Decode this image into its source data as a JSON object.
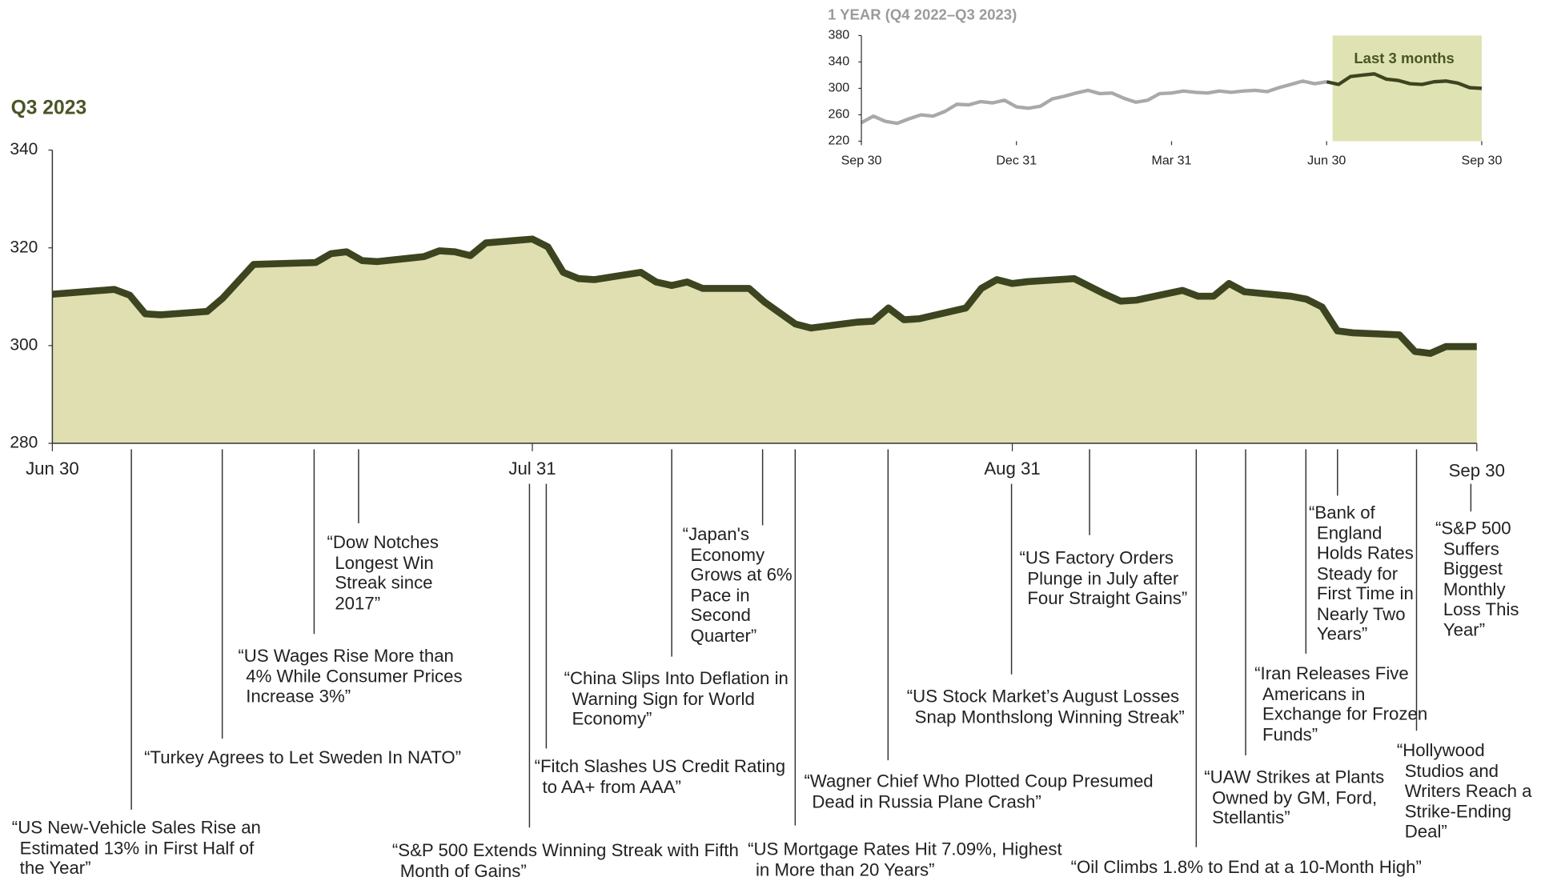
{
  "chart_data": [
    {
      "type": "area",
      "title": "Q3 2023",
      "x": [
        "Jun 30",
        "Jul 4",
        "Jul 5",
        "Jul 6",
        "Jul 7",
        "Jul 10",
        "Jul 11",
        "Jul 13",
        "Jul 17",
        "Jul 18",
        "Jul 19",
        "Jul 20",
        "Jul 21",
        "Jul 24",
        "Jul 25",
        "Jul 26",
        "Jul 27",
        "Jul 28",
        "Jul 31",
        "Aug 1",
        "Aug 2",
        "Aug 3",
        "Aug 4",
        "Aug 7",
        "Aug 8",
        "Aug 9",
        "Aug 10",
        "Aug 11",
        "Aug 14",
        "Aug 15",
        "Aug 17",
        "Aug 18",
        "Aug 21",
        "Aug 22",
        "Aug 23",
        "Aug 24",
        "Aug 25",
        "Aug 28",
        "Aug 29",
        "Aug 30",
        "Aug 31",
        "Sep 1",
        "Sep 4",
        "Sep 6",
        "Sep 7",
        "Sep 8",
        "Sep 11",
        "Sep 12",
        "Sep 13",
        "Sep 14",
        "Sep 15",
        "Sep 18",
        "Sep 19",
        "Sep 20",
        "Sep 21",
        "Sep 22",
        "Sep 25",
        "Sep 26",
        "Sep 27",
        "Sep 28",
        "Sep 30"
      ],
      "values": [
        310.5,
        311.5,
        310.3,
        306.5,
        306.3,
        307,
        309.7,
        316.6,
        317,
        318.8,
        319.2,
        317.4,
        317.2,
        318.2,
        319.4,
        319.2,
        318.4,
        321,
        321.8,
        320.2,
        315,
        313.7,
        313.5,
        315,
        313,
        312.3,
        313,
        311.7,
        311.7,
        308.9,
        304.4,
        303.6,
        304.8,
        305,
        307.7,
        305.3,
        305.5,
        307.7,
        311.7,
        313.5,
        312.7,
        313.1,
        313.7,
        310.5,
        309.1,
        309.3,
        311.3,
        310.1,
        310.1,
        312.7,
        311,
        310.1,
        309.5,
        307.9,
        303,
        302.6,
        302.2,
        298.8,
        298.4,
        299.8,
        299.8
      ],
      "xlim": [
        "Jun 30",
        "Sep 30"
      ],
      "xticks": [
        "Jun 30",
        "Jul 31",
        "Aug 31",
        "Sep 30"
      ],
      "ylim": [
        280,
        340
      ],
      "yticks": [
        280,
        300,
        320,
        340
      ],
      "color": "#3c4420",
      "fill": "#dfdfb1",
      "grid": false,
      "annotations": [
        "“US New-Vehicle Sales Rise an Estimated 13% in First Half of the Year”",
        "“Turkey Agrees to Let Sweden In NATO”",
        "“US Wages Rise More than 4% While Consumer Prices Increase 3%”",
        "“Dow Notches Longest Win Streak since 2017”",
        "“S&P 500 Extends Winning Streak with Fifth Month of Gains”",
        "“Fitch Slashes US Credit Rating to AA+ from AAA”",
        "“China Slips Into Deflation in Warning Sign for World Economy”",
        "“Japan's Economy Grows at 6% Pace in Second Quarter”",
        "“US Mortgage Rates Hit 7.09%, Highest in More than 20 Years”",
        "“Wagner Chief Who Plotted Coup Presumed Dead in Russia Plane Crash”",
        "“US Stock Market’s August Losses Snap Monthslong Winning Streak”",
        "“US Factory Orders Plunge in July after Four Straight Gains”",
        "“Oil Climbs 1.8% to End at a 10-Month High”",
        "“UAW Strikes at Plants Owned by GM, Ford, Stellantis”",
        "“Iran Releases Five Americans in Exchange for Frozen Funds”",
        "“Bank of England Holds Rates Steady for First Time in Nearly Two Years”",
        "“Hollywood Studios and Writers Reach a Strike-Ending Deal”",
        "“S&P 500 Suffers Biggest Monthly Loss This Year”"
      ]
    },
    {
      "type": "line",
      "title": "1 YEAR (Q4 2022–Q3 2023)",
      "values": [
        248,
        258,
        250,
        247,
        254,
        260,
        258,
        265,
        276,
        275,
        280,
        278,
        282,
        272,
        270,
        273,
        284,
        288,
        293,
        297,
        292,
        293,
        285,
        279,
        282,
        292,
        293,
        296,
        294,
        293,
        296,
        294,
        296,
        297,
        295,
        301,
        306,
        311,
        307,
        310,
        306,
        318,
        320,
        322,
        314,
        312,
        307,
        306,
        310,
        311,
        308,
        301,
        300
      ],
      "xlim": [
        0,
        52
      ],
      "xticks": [
        {
          "value": 0,
          "label": "Sep 30"
        },
        {
          "value": 13,
          "label": "Dec 31"
        },
        {
          "value": 26,
          "label": "Mar 31"
        },
        {
          "value": 39,
          "label": "Jun 30"
        },
        {
          "value": 52,
          "label": "Sep 30"
        }
      ],
      "ylim": [
        220,
        380
      ],
      "yticks": [
        220,
        260,
        300,
        340,
        380
      ],
      "color": "#a9a9a9",
      "highlight": {
        "from": 39,
        "to": 52,
        "label": "Last 3 months",
        "color": "#dfe3b4",
        "line_color": "#3c4420"
      }
    }
  ]
}
